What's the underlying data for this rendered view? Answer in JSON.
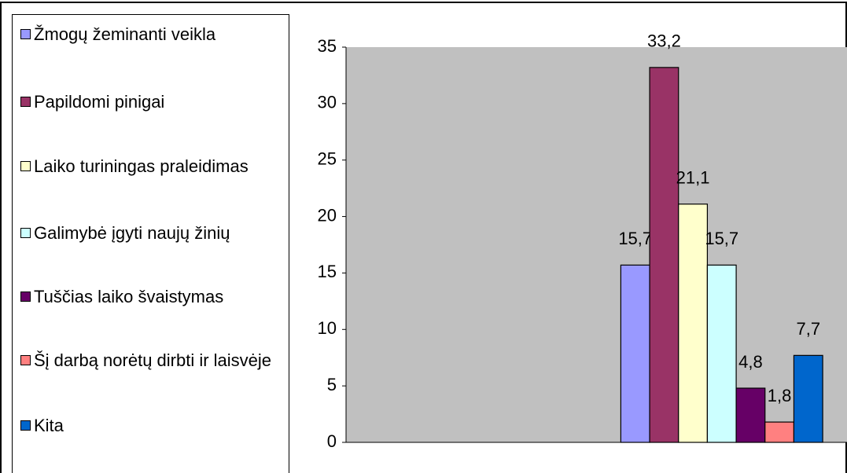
{
  "chart_data": {
    "type": "bar",
    "categories": [
      null,
      null
    ],
    "series": [
      {
        "name": "Žmogų žeminanti veikla",
        "color": "#9999ff",
        "values": [
          null,
          15.7
        ],
        "value_labels": [
          null,
          "15,7"
        ]
      },
      {
        "name": "Papildomi pinigai",
        "color": "#993366",
        "values": [
          null,
          33.2
        ],
        "value_labels": [
          null,
          "33,2"
        ]
      },
      {
        "name": "Laiko turiningas praleidimas",
        "color": "#ffffcc",
        "values": [
          null,
          21.1
        ],
        "value_labels": [
          null,
          "21,1"
        ]
      },
      {
        "name": "Galimybė įgyti naujų žinių",
        "color": "#ccffff",
        "values": [
          null,
          15.7
        ],
        "value_labels": [
          null,
          "15,7"
        ]
      },
      {
        "name": "Tuščias laiko švaistymas",
        "color": "#660066",
        "values": [
          null,
          4.8
        ],
        "value_labels": [
          null,
          "4,8"
        ]
      },
      {
        "name": "Šį darbą norėtų dirbti ir laisvėje",
        "color": "#ff8080",
        "values": [
          null,
          1.8
        ],
        "value_labels": [
          null,
          "1,8"
        ]
      },
      {
        "name": "Kita",
        "color": "#0066cc",
        "values": [
          null,
          7.7
        ],
        "value_labels": [
          null,
          "7,7"
        ]
      }
    ],
    "ylim": [
      0,
      35
    ],
    "yticks": [
      0,
      5,
      10,
      15,
      20,
      25,
      30,
      35
    ],
    "grid": false,
    "legend": "left"
  }
}
